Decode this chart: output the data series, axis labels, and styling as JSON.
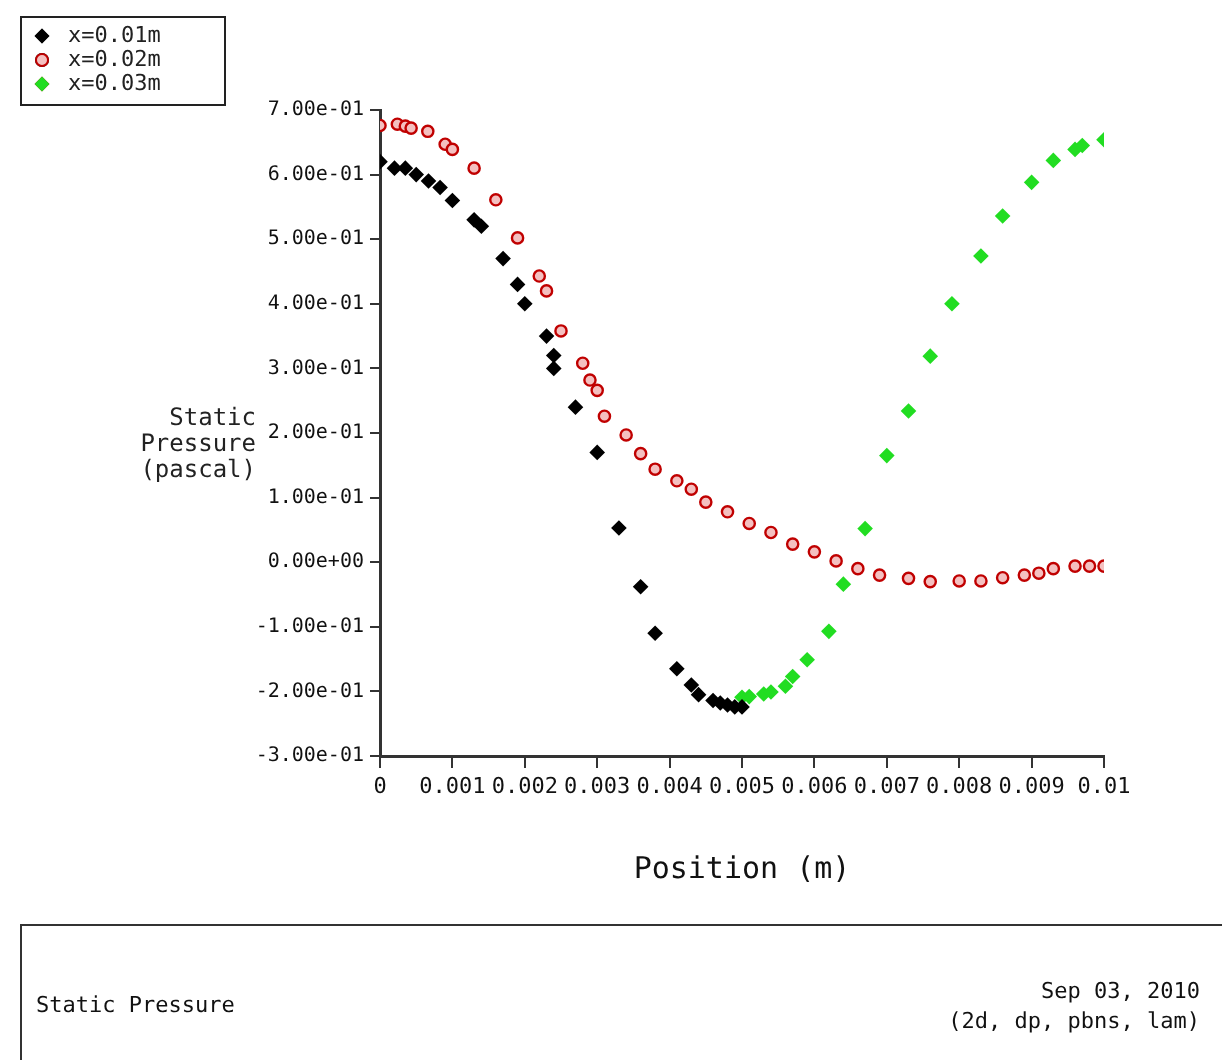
{
  "chart_data": {
    "type": "scatter",
    "title": "Static Pressure",
    "xlabel": "Position (m)",
    "ylabel": "Static Pressure (pascal)",
    "annotations": [
      "Sep 03, 2010",
      "(2d, dp, pbns, lam)"
    ],
    "xlim": [
      0,
      0.01
    ],
    "xticks": [
      0,
      0.001,
      0.002,
      0.003,
      0.004,
      0.005,
      0.006,
      0.007,
      0.008,
      0.009,
      0.01
    ],
    "ylim": [
      -0.3,
      0.7
    ],
    "yticks": [
      {
        "value": 0.7,
        "label": "7.00e-01"
      },
      {
        "value": 0.6,
        "label": "6.00e-01"
      },
      {
        "value": 0.5,
        "label": "5.00e-01"
      },
      {
        "value": 0.4,
        "label": "4.00e-01"
      },
      {
        "value": 0.3,
        "label": "3.00e-01"
      },
      {
        "value": 0.2,
        "label": "2.00e-01"
      },
      {
        "value": 0.1,
        "label": "1.00e-01"
      },
      {
        "value": 0,
        "label": "0.00e+00"
      },
      {
        "value": -0.1,
        "label": "-1.00e-01"
      },
      {
        "value": -0.2,
        "label": "-2.00e-01"
      },
      {
        "value": -0.3,
        "label": "-3.00e-01"
      }
    ],
    "grid": false,
    "legend": "top left",
    "series": [
      {
        "name": "x=0.01m",
        "color": "#000000",
        "marker": "diamond",
        "x": [
          0,
          0.0002,
          0.00035,
          0.0005,
          0.00067,
          0.00083,
          0.001,
          0.0013,
          0.0014,
          0.0017,
          0.0019,
          0.002,
          0.0023,
          0.0024,
          0.0024,
          0.0027,
          0.003,
          0.0033,
          0.0036,
          0.0038,
          0.0041,
          0.0043,
          0.0044,
          0.0046,
          0.0047,
          0.0048,
          0.0049,
          0.005
        ],
        "values": [
          0.62,
          0.61,
          0.61,
          0.6,
          0.59,
          0.58,
          0.56,
          0.53,
          0.52,
          0.47,
          0.43,
          0.4,
          0.35,
          0.32,
          0.3,
          0.24,
          0.17,
          0.053,
          -0.038,
          -0.11,
          -0.165,
          -0.19,
          -0.205,
          -0.214,
          -0.218,
          -0.221,
          -0.224,
          -0.224
        ]
      },
      {
        "name": "x=0.02m",
        "color": "#c00000",
        "marker": "circle",
        "x": [
          0,
          0.00024,
          0.00035,
          0.00043,
          0.00066,
          0.0009,
          0.001,
          0.0013,
          0.0016,
          0.0019,
          0.0022,
          0.0023,
          0.0025,
          0.0028,
          0.0029,
          0.003,
          0.0031,
          0.0034,
          0.0036,
          0.0038,
          0.0041,
          0.0043,
          0.0045,
          0.0048,
          0.0051,
          0.0054,
          0.0057,
          0.006,
          0.0063,
          0.0066,
          0.0069,
          0.0073,
          0.0076,
          0.008,
          0.0083,
          0.0086,
          0.0089,
          0.0091,
          0.0093,
          0.0096,
          0.0098,
          0.01
        ],
        "values": [
          0.676,
          0.678,
          0.675,
          0.672,
          0.667,
          0.647,
          0.639,
          0.61,
          0.561,
          0.502,
          0.443,
          0.42,
          0.358,
          0.308,
          0.282,
          0.266,
          0.226,
          0.197,
          0.168,
          0.144,
          0.126,
          0.113,
          0.093,
          0.078,
          0.06,
          0.046,
          0.028,
          0.016,
          0.002,
          -0.01,
          -0.02,
          -0.025,
          -0.03,
          -0.029,
          -0.029,
          -0.024,
          -0.02,
          -0.017,
          -0.01,
          -0.006,
          -0.006,
          -0.006
        ]
      },
      {
        "name": "x=0.03m",
        "color": "#22dd22",
        "marker": "diamond",
        "x": [
          0.005,
          0.0051,
          0.0053,
          0.0054,
          0.0056,
          0.0057,
          0.0059,
          0.0062,
          0.0064,
          0.0067,
          0.007,
          0.0073,
          0.0076,
          0.0079,
          0.0083,
          0.0086,
          0.009,
          0.0093,
          0.0096,
          0.0097,
          0.01
        ],
        "values": [
          -0.209,
          -0.208,
          -0.204,
          -0.201,
          -0.192,
          -0.177,
          -0.151,
          -0.107,
          -0.034,
          0.052,
          0.165,
          0.234,
          0.319,
          0.4,
          0.474,
          0.536,
          0.588,
          0.622,
          0.639,
          0.645,
          0.654
        ]
      }
    ]
  }
}
